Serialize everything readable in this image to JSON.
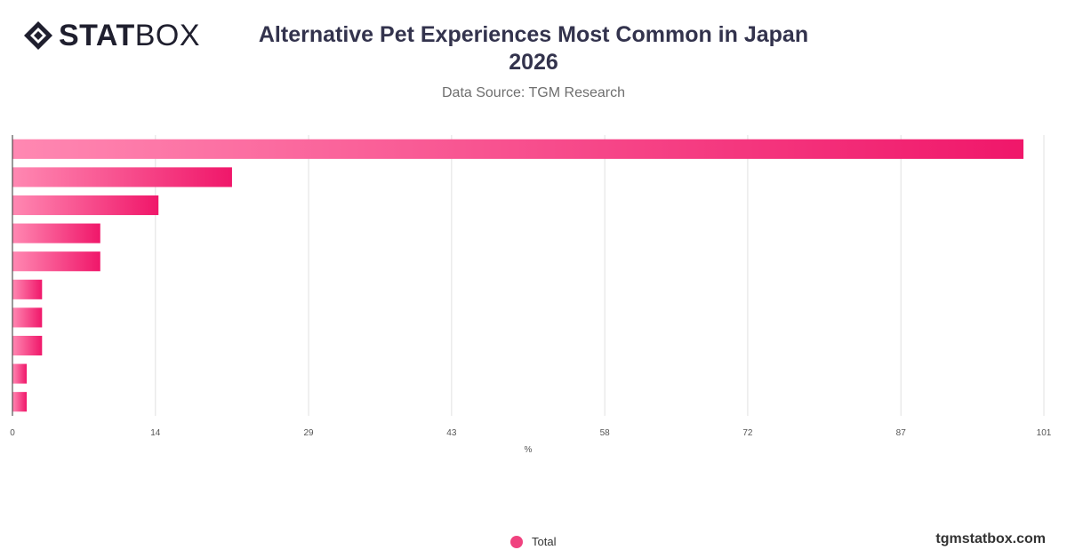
{
  "brand": {
    "name_bold": "STAT",
    "name_light": "BOX"
  },
  "header": {
    "title_line1": "Alternative Pet Experiences Most Common in Japan",
    "title_line2": "2026",
    "subtitle": "Data Source: TGM Research"
  },
  "colors": {
    "bar_start": "#ff88b2",
    "bar_end": "#f0176a",
    "legend_dot": "#f0427f",
    "grid": "#e0e0e0",
    "axis": "#333333"
  },
  "chart_data": {
    "type": "bar",
    "orientation": "horizontal",
    "series": [
      {
        "name": "Total",
        "values": [
          99,
          21.5,
          14.3,
          8.6,
          8.6,
          2.9,
          2.9,
          2.9,
          1.4,
          1.4
        ]
      }
    ],
    "xlabel": "%",
    "x_ticks": [
      "0",
      "14",
      "29",
      "43",
      "58",
      "72",
      "87",
      "101"
    ],
    "xlim": [
      0,
      101
    ],
    "grid": true,
    "legend_position": "bottom-center"
  },
  "legend": {
    "label": "Total"
  },
  "footer": {
    "watermark": "tgmstatbox.com"
  }
}
